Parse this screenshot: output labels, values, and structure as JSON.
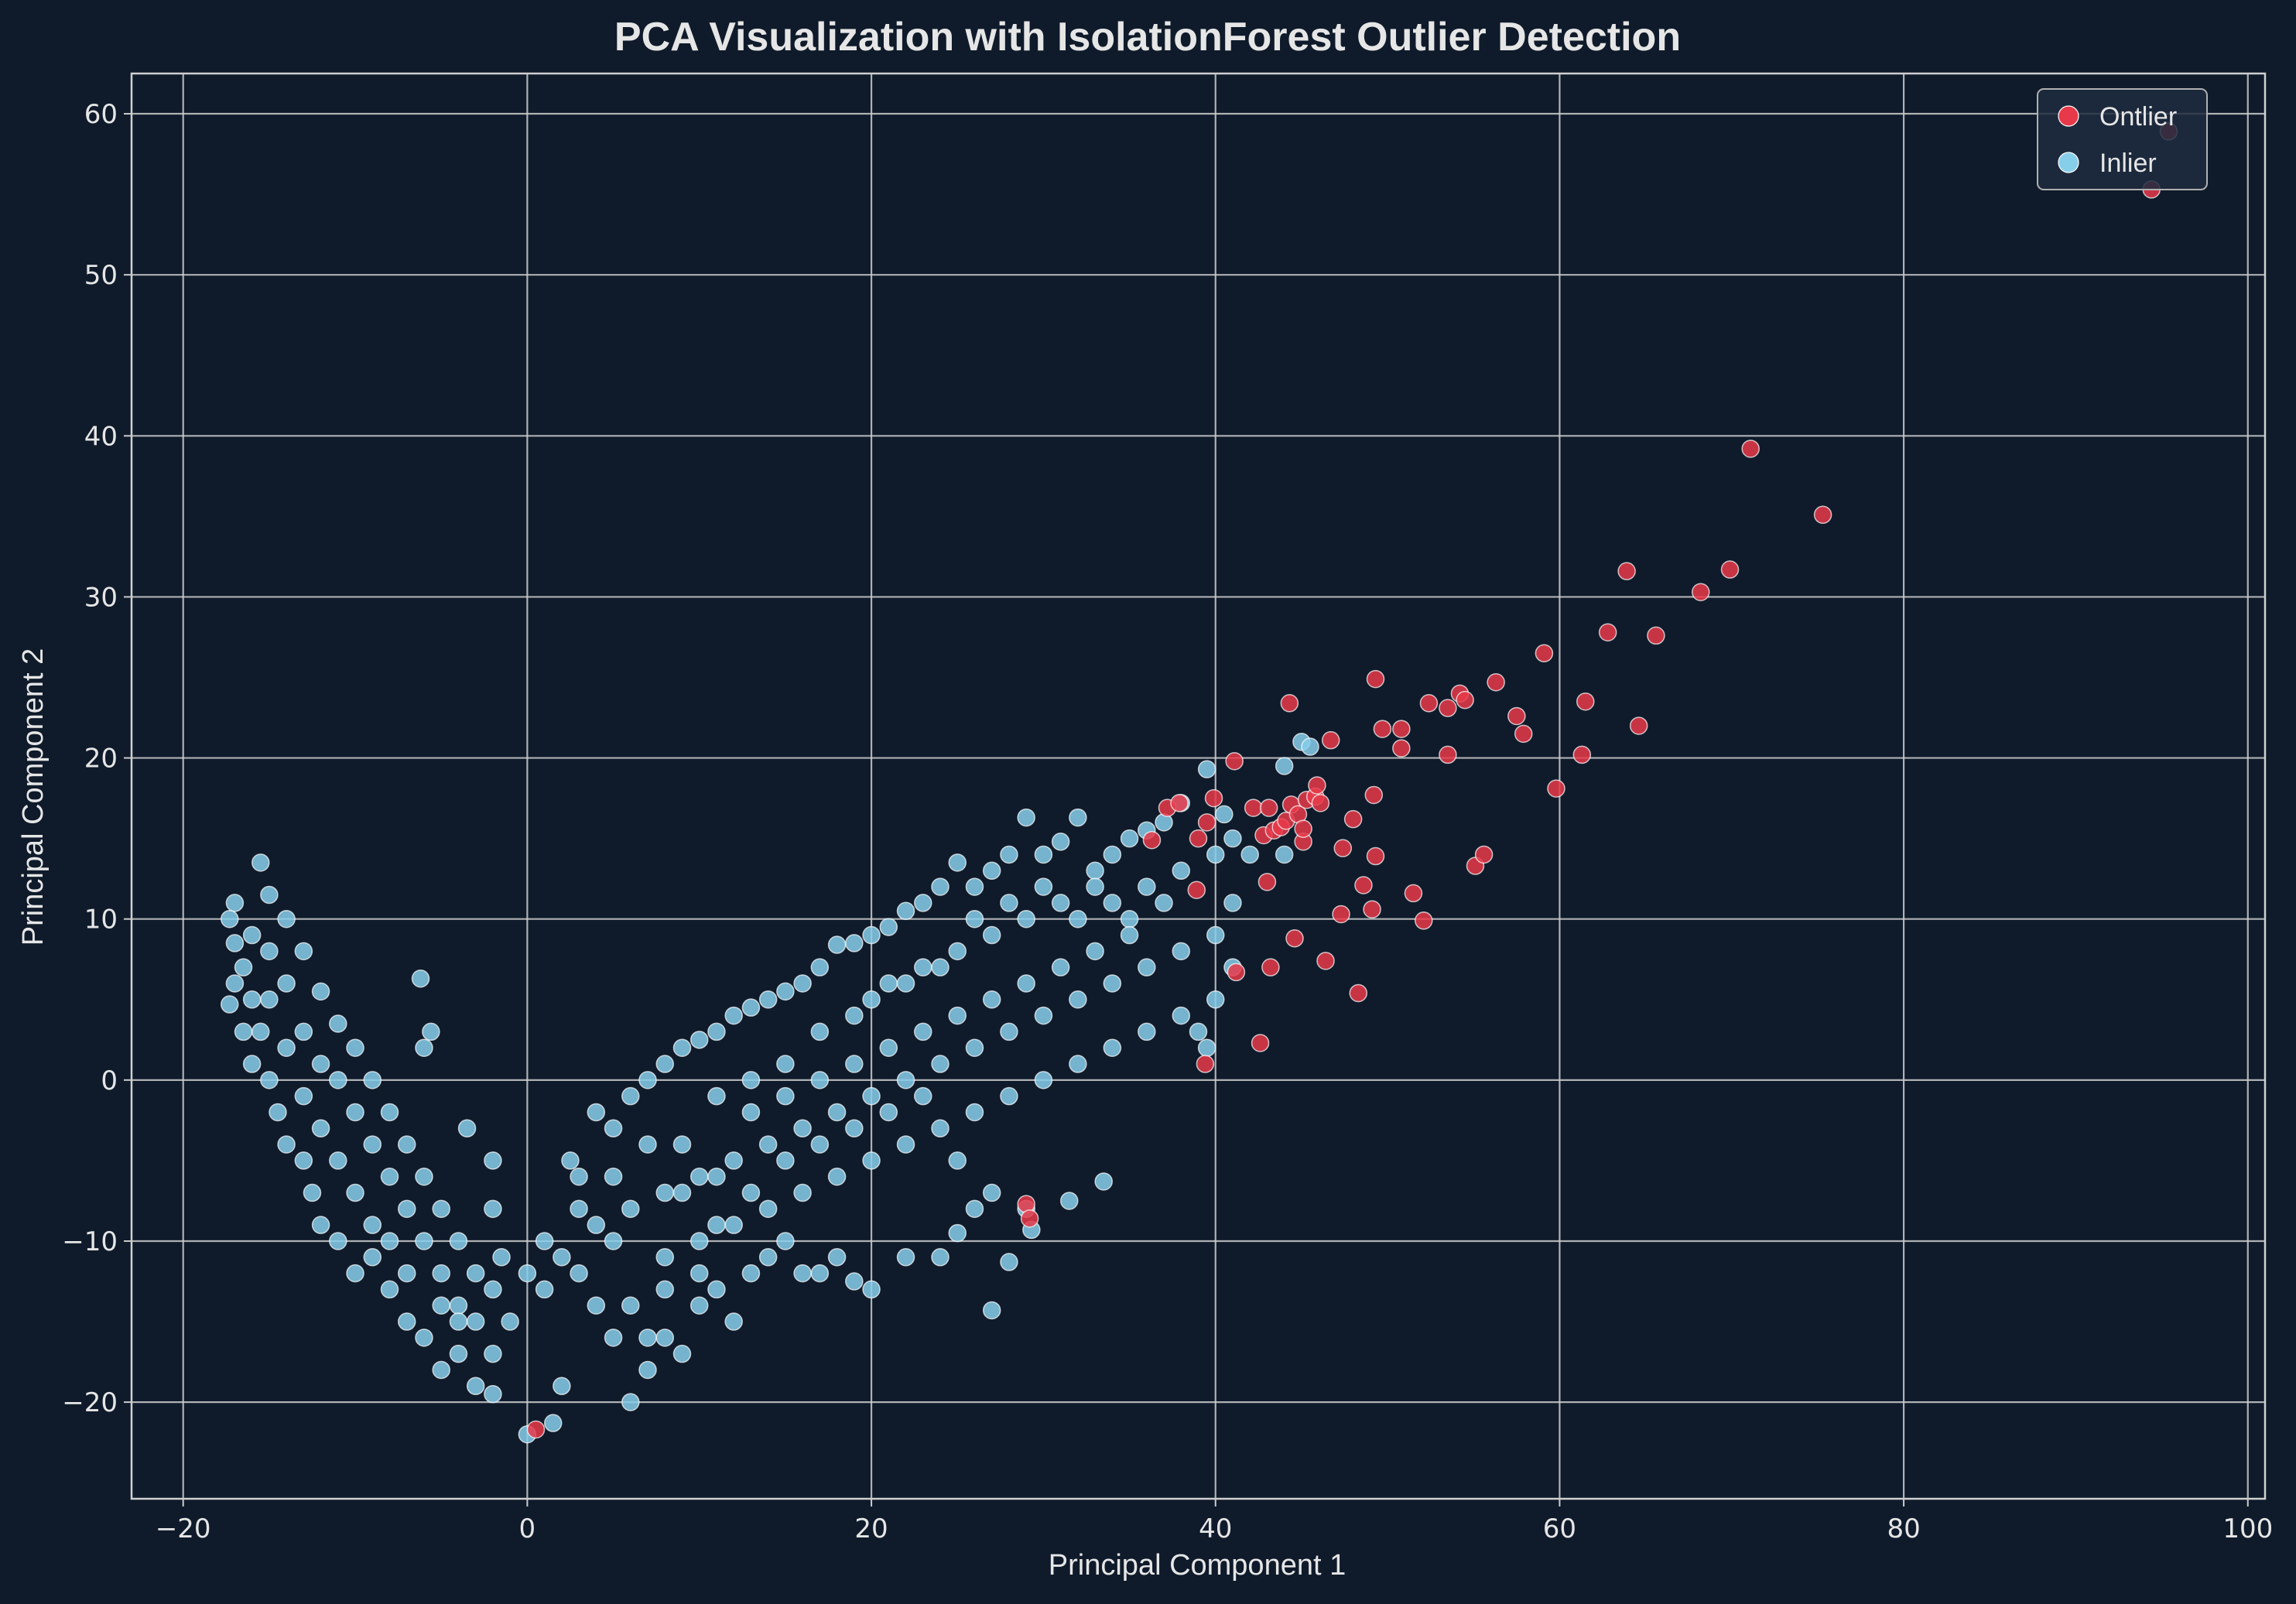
{
  "chart_data": {
    "type": "scatter",
    "title": "PCA Visualization with IsolationForest Outlier Detection",
    "xlabel": "Principal Component 1",
    "ylabel": "Principal Component 2",
    "xlim": [
      -23,
      101
    ],
    "ylim": [
      -26,
      62.5
    ],
    "xticks": [
      -20,
      0,
      20,
      40,
      60,
      80,
      100
    ],
    "yticks": [
      -20,
      -10,
      0,
      10,
      20,
      30,
      40,
      50,
      60
    ],
    "grid": true,
    "legend_position": "top-right",
    "background": "#0f1b2b",
    "series": [
      {
        "name": "Ontlier",
        "color": "#e8394a",
        "points": [
          [
            0.5,
            -21.7
          ],
          [
            29,
            -7.7
          ],
          [
            29.2,
            -8.6
          ],
          [
            36.3,
            14.9
          ],
          [
            37.2,
            16.9
          ],
          [
            37.9,
            17.2
          ],
          [
            38.9,
            11.8
          ],
          [
            39,
            15
          ],
          [
            39.4,
            1
          ],
          [
            39.5,
            16
          ],
          [
            39.9,
            17.5
          ],
          [
            41.1,
            19.8
          ],
          [
            41.2,
            6.7
          ],
          [
            42.2,
            16.9
          ],
          [
            42.6,
            2.3
          ],
          [
            42.8,
            15.2
          ],
          [
            43,
            12.3
          ],
          [
            43.1,
            16.9
          ],
          [
            43.2,
            7
          ],
          [
            43.4,
            15.5
          ],
          [
            43.8,
            15.7
          ],
          [
            44.1,
            16.1
          ],
          [
            44.3,
            23.4
          ],
          [
            44.4,
            17.1
          ],
          [
            44.6,
            8.8
          ],
          [
            44.8,
            16.5
          ],
          [
            45.1,
            14.8
          ],
          [
            45.1,
            15.6
          ],
          [
            45.3,
            17.4
          ],
          [
            45.8,
            17.6
          ],
          [
            45.9,
            18.3
          ],
          [
            46.1,
            17.2
          ],
          [
            46.4,
            7.4
          ],
          [
            46.7,
            21.1
          ],
          [
            47.3,
            10.3
          ],
          [
            47.4,
            14.4
          ],
          [
            48,
            16.2
          ],
          [
            48.3,
            5.4
          ],
          [
            48.6,
            12.1
          ],
          [
            49.1,
            10.6
          ],
          [
            49.2,
            17.7
          ],
          [
            49.3,
            13.9
          ],
          [
            49.3,
            24.9
          ],
          [
            49.7,
            21.8
          ],
          [
            50.8,
            21.8
          ],
          [
            50.8,
            20.6
          ],
          [
            51.5,
            11.6
          ],
          [
            52.1,
            9.9
          ],
          [
            52.4,
            23.4
          ],
          [
            53.5,
            23.1
          ],
          [
            53.5,
            20.2
          ],
          [
            54.2,
            24
          ],
          [
            54.5,
            23.6
          ],
          [
            55.1,
            13.3
          ],
          [
            55.6,
            14
          ],
          [
            56.3,
            24.7
          ],
          [
            57.5,
            22.6
          ],
          [
            57.9,
            21.5
          ],
          [
            59.1,
            26.5
          ],
          [
            59.8,
            18.1
          ],
          [
            61.3,
            20.2
          ],
          [
            61.5,
            23.5
          ],
          [
            62.8,
            27.8
          ],
          [
            63.9,
            31.6
          ],
          [
            64.6,
            22
          ],
          [
            65.6,
            27.6
          ],
          [
            68.2,
            30.3
          ],
          [
            69.9,
            31.7
          ],
          [
            71.1,
            39.2
          ],
          [
            75.3,
            35.1
          ],
          [
            94.4,
            55.3
          ],
          [
            95.4,
            58.9
          ]
        ]
      },
      {
        "name": "Inlier",
        "color": "#87ceeb",
        "points": [
          [
            -17,
            11
          ],
          [
            -17.3,
            10
          ],
          [
            -17,
            8.5
          ],
          [
            -16.5,
            7
          ],
          [
            -17,
            6
          ],
          [
            -17.3,
            4.7
          ],
          [
            -16,
            5
          ],
          [
            -15.5,
            3
          ],
          [
            -16,
            1
          ],
          [
            -15,
            0
          ],
          [
            -14.5,
            -2
          ],
          [
            -14,
            -4
          ],
          [
            -13,
            -5
          ],
          [
            -12.5,
            -7
          ],
          [
            -12,
            -9
          ],
          [
            -11,
            -10
          ],
          [
            -10,
            -12
          ],
          [
            -9,
            -11
          ],
          [
            -8,
            -13
          ],
          [
            -7,
            -15
          ],
          [
            -6,
            -16
          ],
          [
            -5,
            -18
          ],
          [
            -4,
            -17
          ],
          [
            -3,
            -19
          ],
          [
            -2,
            -19.5
          ],
          [
            -15.5,
            13.5
          ],
          [
            -15,
            11.5
          ],
          [
            -14,
            10
          ],
          [
            -13,
            8
          ],
          [
            -12,
            5.5
          ],
          [
            -11,
            3.5
          ],
          [
            -10,
            2
          ],
          [
            -9,
            0
          ],
          [
            -8,
            -2
          ],
          [
            -7,
            -4
          ],
          [
            -6,
            -6
          ],
          [
            -5,
            -8
          ],
          [
            -4,
            -10
          ],
          [
            -3,
            -12
          ],
          [
            -2,
            -13
          ],
          [
            -1,
            -15
          ],
          [
            -6.2,
            6.3
          ],
          [
            -6,
            2
          ],
          [
            -5.6,
            3
          ],
          [
            -3.5,
            -3
          ],
          [
            -2,
            -5
          ],
          [
            -2,
            -8
          ],
          [
            -1.5,
            -11
          ],
          [
            0,
            -22
          ],
          [
            1.5,
            -21.3
          ],
          [
            2,
            -19
          ],
          [
            1,
            -13
          ],
          [
            2,
            -11
          ],
          [
            3,
            -12
          ],
          [
            2.5,
            -5
          ],
          [
            3,
            -6
          ],
          [
            4,
            -9
          ],
          [
            5,
            -10
          ],
          [
            5,
            -16
          ],
          [
            6,
            -20
          ],
          [
            7,
            -18
          ],
          [
            8,
            -16
          ],
          [
            9,
            -17
          ],
          [
            10,
            -14
          ],
          [
            11,
            -13
          ],
          [
            12,
            -15
          ],
          [
            13,
            -12
          ],
          [
            14,
            -11
          ],
          [
            15,
            -10
          ],
          [
            16,
            -12
          ],
          [
            17,
            -12
          ],
          [
            18,
            -11
          ],
          [
            19,
            -12.5
          ],
          [
            20,
            -13
          ],
          [
            22,
            -11
          ],
          [
            24,
            -11
          ],
          [
            25,
            -9.5
          ],
          [
            26,
            -8
          ],
          [
            27,
            -14.3
          ],
          [
            28,
            -11.3
          ],
          [
            29.3,
            -9.3
          ],
          [
            31.5,
            -7.5
          ],
          [
            33.5,
            -6.3
          ],
          [
            4,
            -2
          ],
          [
            5,
            -3
          ],
          [
            6,
            -1
          ],
          [
            7,
            0
          ],
          [
            8,
            1
          ],
          [
            9,
            2
          ],
          [
            10,
            2.5
          ],
          [
            11,
            3
          ],
          [
            12,
            4
          ],
          [
            13,
            4.5
          ],
          [
            14,
            5
          ],
          [
            15,
            5.5
          ],
          [
            16,
            6
          ],
          [
            17,
            7
          ],
          [
            18,
            8.4
          ],
          [
            19,
            8.5
          ],
          [
            20,
            9
          ],
          [
            21,
            9.5
          ],
          [
            22,
            10.5
          ],
          [
            23,
            11
          ],
          [
            24,
            12
          ],
          [
            25,
            13.5
          ],
          [
            26,
            12
          ],
          [
            27,
            13
          ],
          [
            28,
            14
          ],
          [
            29,
            16.3
          ],
          [
            30,
            14
          ],
          [
            31,
            14.8
          ],
          [
            32,
            16.3
          ],
          [
            33,
            13
          ],
          [
            34,
            14
          ],
          [
            35,
            15
          ],
          [
            36,
            15.5
          ],
          [
            37,
            16
          ],
          [
            38,
            17.2
          ],
          [
            39.5,
            19.3
          ],
          [
            40.5,
            16.5
          ],
          [
            41,
            15
          ],
          [
            42,
            14
          ],
          [
            44,
            19.5
          ],
          [
            45,
            21
          ],
          [
            45.5,
            20.7
          ],
          [
            44,
            14
          ],
          [
            6,
            -8
          ],
          [
            8,
            -7
          ],
          [
            10,
            -6
          ],
          [
            12,
            -5
          ],
          [
            14,
            -4
          ],
          [
            16,
            -3
          ],
          [
            18,
            -2
          ],
          [
            20,
            -1
          ],
          [
            22,
            0
          ],
          [
            24,
            1
          ],
          [
            26,
            2
          ],
          [
            28,
            3
          ],
          [
            30,
            4
          ],
          [
            32,
            5
          ],
          [
            34,
            6
          ],
          [
            36,
            7
          ],
          [
            38,
            8
          ],
          [
            40,
            9
          ],
          [
            41,
            11
          ],
          [
            8,
            -11
          ],
          [
            10,
            -10
          ],
          [
            12,
            -9
          ],
          [
            14,
            -8
          ],
          [
            16,
            -7
          ],
          [
            18,
            -6
          ],
          [
            20,
            -5
          ],
          [
            22,
            -4
          ],
          [
            24,
            -3
          ],
          [
            26,
            -2
          ],
          [
            28,
            -1
          ],
          [
            30,
            0
          ],
          [
            32,
            1
          ],
          [
            34,
            2
          ],
          [
            36,
            3
          ],
          [
            38,
            4
          ],
          [
            40,
            5
          ],
          [
            39,
            3
          ],
          [
            41,
            7
          ],
          [
            39.5,
            2
          ],
          [
            6,
            -14
          ],
          [
            8,
            -13
          ],
          [
            10,
            -12
          ],
          [
            11,
            -6
          ],
          [
            13,
            -2
          ],
          [
            15,
            1
          ],
          [
            17,
            3
          ],
          [
            19,
            4
          ],
          [
            21,
            6
          ],
          [
            23,
            7
          ],
          [
            25,
            8
          ],
          [
            27,
            9
          ],
          [
            29,
            10
          ],
          [
            31,
            11
          ],
          [
            33,
            12
          ],
          [
            35,
            10
          ],
          [
            37,
            11
          ],
          [
            9,
            -4
          ],
          [
            11,
            -1
          ],
          [
            13,
            0
          ],
          [
            15,
            -1
          ],
          [
            17,
            0
          ],
          [
            19,
            1
          ],
          [
            21,
            2
          ],
          [
            23,
            3
          ],
          [
            25,
            4
          ],
          [
            27,
            5
          ],
          [
            29,
            6
          ],
          [
            31,
            7
          ],
          [
            33,
            8
          ],
          [
            35,
            9
          ],
          [
            -15,
            8
          ],
          [
            -14,
            6
          ],
          [
            -13,
            3
          ],
          [
            -12,
            1
          ],
          [
            -11,
            0
          ],
          [
            -10,
            -2
          ],
          [
            -9,
            -4
          ],
          [
            -8,
            -6
          ],
          [
            -7,
            -8
          ],
          [
            -6,
            -10
          ],
          [
            -5,
            -12
          ],
          [
            -4,
            -14
          ],
          [
            -3,
            -15
          ],
          [
            -16,
            9
          ],
          [
            -16.5,
            3
          ],
          [
            -15,
            5
          ],
          [
            -14,
            2
          ],
          [
            -13,
            -1
          ],
          [
            -12,
            -3
          ],
          [
            -11,
            -5
          ],
          [
            -10,
            -7
          ],
          [
            -9,
            -9
          ],
          [
            -8,
            -10
          ],
          [
            -7,
            -12
          ],
          [
            -5,
            -14
          ],
          [
            -4,
            -15
          ],
          [
            -2,
            -17
          ],
          [
            0,
            -12
          ],
          [
            1,
            -10
          ],
          [
            3,
            -8
          ],
          [
            4,
            -14
          ],
          [
            7,
            -16
          ],
          [
            5,
            -6
          ],
          [
            7,
            -4
          ],
          [
            9,
            -7
          ],
          [
            11,
            -9
          ],
          [
            13,
            -7
          ],
          [
            15,
            -5
          ],
          [
            17,
            -4
          ],
          [
            19,
            -3
          ],
          [
            21,
            -2
          ],
          [
            23,
            -1
          ],
          [
            25,
            -5
          ],
          [
            27,
            -7
          ],
          [
            29,
            -8
          ],
          [
            20,
            5
          ],
          [
            22,
            6
          ],
          [
            24,
            7
          ],
          [
            26,
            10
          ],
          [
            28,
            11
          ],
          [
            30,
            12
          ],
          [
            32,
            10
          ],
          [
            34,
            11
          ],
          [
            36,
            12
          ],
          [
            38,
            13
          ],
          [
            40,
            14
          ]
        ]
      }
    ]
  }
}
